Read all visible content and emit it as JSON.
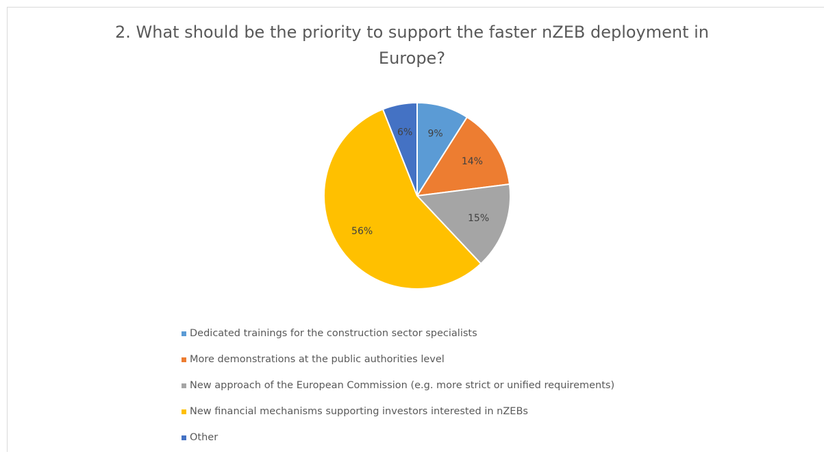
{
  "chart_data": {
    "type": "pie",
    "title": "2. What should be the priority to support the faster nZEB deployment in Europe?",
    "categories": [
      "Dedicated trainings for the construction sector specialists",
      "More demonstrations at the public authorities level",
      "New approach of the European Commission (e.g. more strict or unified requirements)",
      "New financial mechanisms supporting investors interested in nZEBs",
      "Other"
    ],
    "values": [
      9,
      14,
      15,
      56,
      6
    ],
    "data_labels": [
      "9%",
      "14%",
      "15%",
      "56%",
      "6%"
    ],
    "colors": [
      "#5B9BD5",
      "#ED7D31",
      "#A5A5A5",
      "#FFC000",
      "#4472C4"
    ],
    "legend_position": "bottom"
  }
}
